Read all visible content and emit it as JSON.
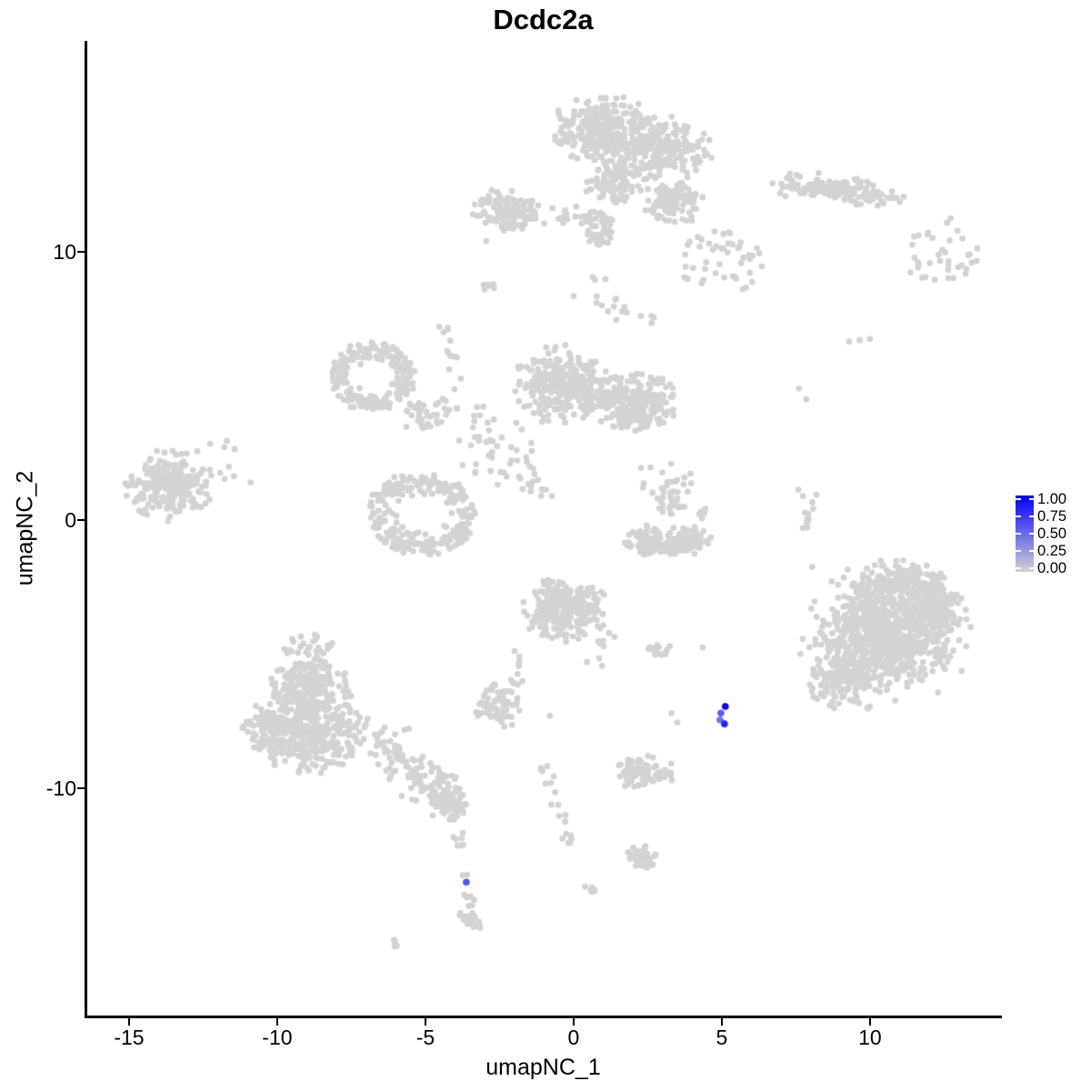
{
  "title": "Dcdc2a",
  "axes": {
    "x": {
      "title": "umapNC_1",
      "tick_labels": [
        "-15",
        "-10",
        "-5",
        "0",
        "5",
        "10"
      ],
      "tick_values": [
        -15,
        -10,
        -5,
        0,
        5,
        10
      ]
    },
    "y": {
      "title": "umapNC_2",
      "tick_labels": [
        "10",
        "0",
        "-10"
      ],
      "tick_values": [
        10,
        0,
        -10
      ]
    }
  },
  "legend": {
    "labels": [
      "1.00",
      "0.75",
      "0.50",
      "0.25",
      "0.00"
    ],
    "values": [
      1.0,
      0.75,
      0.5,
      0.25,
      0.0
    ],
    "low_color": "#d3d3d3",
    "high_color": "#0000ff"
  },
  "chart_data": {
    "type": "scatter",
    "title": "Dcdc2a",
    "xlabel": "umapNC_1",
    "ylabel": "umapNC_2",
    "xlim": [
      -16.44,
      14.39
    ],
    "ylim": [
      -18.51,
      17.86
    ],
    "grid": false,
    "legend_position": "right",
    "point_color_low": "#d3d3d3",
    "point_color_high": "#0000ff",
    "point_radius": 3.4,
    "highlight_radius": 3.8,
    "clusters": [
      {
        "t": "blob",
        "x": 1.0,
        "y": 14.55,
        "rx": 1.9,
        "ry": 1.3,
        "n": 280
      },
      {
        "t": "blob",
        "x": 3.0,
        "y": 13.8,
        "rx": 1.7,
        "ry": 1.3,
        "n": 220
      },
      {
        "t": "blob",
        "x": 1.4,
        "y": 12.6,
        "rx": 1.1,
        "ry": 0.9,
        "n": 100
      },
      {
        "t": "blob",
        "x": 3.4,
        "y": 11.9,
        "rx": 1.1,
        "ry": 0.9,
        "n": 110
      },
      {
        "t": "blob",
        "x": 0.8,
        "y": 10.9,
        "rx": 0.6,
        "ry": 0.85,
        "n": 55
      },
      {
        "t": "blob",
        "x": 8.8,
        "y": 12.3,
        "rx": 2.5,
        "ry": 0.6,
        "n": 140,
        "a": -8
      },
      {
        "t": "sparse",
        "x": 12.4,
        "y": 10.0,
        "rx": 1.3,
        "ry": 1.3,
        "n": 38
      },
      {
        "t": "sparse",
        "x": 4.9,
        "y": 9.6,
        "rx": 1.6,
        "ry": 1.2,
        "n": 48
      },
      {
        "t": "blob",
        "x": -2.25,
        "y": 11.55,
        "rx": 1.15,
        "ry": 0.85,
        "n": 130
      },
      {
        "t": "band",
        "x": -1.1,
        "y": 11.35,
        "x2": 0.3,
        "y2": 11.15,
        "w": 0.22,
        "n": 14
      },
      {
        "t": "blob",
        "x": -2.85,
        "y": 8.7,
        "rx": 0.42,
        "ry": 0.2,
        "n": 8,
        "a": 40
      },
      {
        "t": "band",
        "x": -4.5,
        "y": 7.6,
        "x2": -3.8,
        "y2": 4.9,
        "w": 0.18,
        "n": 14
      },
      {
        "t": "ring",
        "x": -6.8,
        "y": 5.35,
        "rx": 1.4,
        "ry": 1.25,
        "n": 205,
        "h": 0.45
      },
      {
        "t": "band",
        "x": -5.6,
        "y": 4.25,
        "x2": -4.6,
        "y2": 3.5,
        "w": 0.3,
        "n": 24
      },
      {
        "t": "sparse",
        "x": -4.3,
        "y": 4.0,
        "rx": 1.3,
        "ry": 0.55,
        "n": 18
      },
      {
        "t": "blob",
        "x": -0.55,
        "y": 5.05,
        "rx": 1.6,
        "ry": 1.5,
        "n": 260
      },
      {
        "t": "blob",
        "x": 2.1,
        "y": 4.35,
        "rx": 1.5,
        "ry": 1.15,
        "n": 230
      },
      {
        "t": "blob",
        "x": 0.8,
        "y": 4.7,
        "rx": 0.9,
        "ry": 0.9,
        "n": 60
      },
      {
        "t": "sparse",
        "x": -2.7,
        "y": 2.8,
        "rx": 1.4,
        "ry": 1.5,
        "n": 38
      },
      {
        "t": "band",
        "x": -2.2,
        "y": 2.9,
        "x2": -1.0,
        "y2": 0.7,
        "w": 0.25,
        "n": 18
      },
      {
        "t": "blob",
        "x": 3.3,
        "y": 0.8,
        "rx": 0.5,
        "ry": 0.8,
        "n": 35
      },
      {
        "t": "sparse",
        "x": 3.0,
        "y": 1.3,
        "rx": 1.1,
        "ry": 1.0,
        "n": 15
      },
      {
        "t": "blob",
        "x": 2.45,
        "y": -0.7,
        "rx": 0.8,
        "ry": 0.55,
        "n": 60
      },
      {
        "t": "blob",
        "x": 3.9,
        "y": -0.65,
        "rx": 0.8,
        "ry": 0.55,
        "n": 60
      },
      {
        "t": "blob",
        "x": 3.15,
        "y": -1.0,
        "rx": 1.3,
        "ry": 0.4,
        "n": 70
      },
      {
        "t": "blob",
        "x": 4.45,
        "y": 0.2,
        "rx": 0.28,
        "ry": 0.3,
        "n": 10
      },
      {
        "t": "band",
        "x": 7.9,
        "y": 1.2,
        "x2": 8.0,
        "y2": -0.6,
        "w": 0.15,
        "n": 13
      },
      {
        "t": "blob",
        "x": -13.7,
        "y": 1.3,
        "rx": 1.5,
        "ry": 1.35,
        "n": 230
      },
      {
        "t": "sparse",
        "x": -12.1,
        "y": 1.9,
        "rx": 1.0,
        "ry": 1.2,
        "n": 12
      },
      {
        "t": "ring",
        "x": -5.1,
        "y": 0.2,
        "rx": 1.8,
        "ry": 1.5,
        "n": 255,
        "h": 0.4
      },
      {
        "t": "blob",
        "x": -8.9,
        "y": -6.3,
        "rx": 1.5,
        "ry": 1.15,
        "n": 190
      },
      {
        "t": "blob",
        "x": -8.8,
        "y": -8.0,
        "rx": 2.15,
        "ry": 1.45,
        "n": 330
      },
      {
        "t": "blob",
        "x": -10.3,
        "y": -7.8,
        "rx": 0.95,
        "ry": 1.1,
        "n": 80
      },
      {
        "t": "sparse",
        "x": -8.9,
        "y": -4.95,
        "rx": 0.9,
        "ry": 0.75,
        "n": 42
      },
      {
        "t": "band",
        "x": -6.8,
        "y": -8.3,
        "x2": -3.95,
        "y2": -10.45,
        "w": 0.38,
        "n": 130
      },
      {
        "t": "blob",
        "x": -4.15,
        "y": -10.6,
        "rx": 0.6,
        "ry": 0.65,
        "n": 55
      },
      {
        "t": "band",
        "x": -4.05,
        "y": -11.3,
        "x2": -3.6,
        "y2": -13.3,
        "w": 0.12,
        "n": 9
      },
      {
        "t": "band",
        "x": -3.55,
        "y": -13.9,
        "x2": -3.35,
        "y2": -14.45,
        "w": 0.1,
        "n": 6
      },
      {
        "t": "blob",
        "x": -3.5,
        "y": -14.9,
        "rx": 0.5,
        "ry": 0.28,
        "n": 24,
        "a": -30
      },
      {
        "t": "blob",
        "x": -5.95,
        "y": -15.8,
        "rx": 0.3,
        "ry": 0.15,
        "n": 6,
        "a": -35
      },
      {
        "t": "blob",
        "x": 0.55,
        "y": -13.8,
        "rx": 0.25,
        "ry": 0.16,
        "n": 6,
        "a": -20
      },
      {
        "t": "blob",
        "x": -0.35,
        "y": -3.35,
        "rx": 1.55,
        "ry": 1.25,
        "n": 260
      },
      {
        "t": "band",
        "x": -1.75,
        "y": -4.7,
        "x2": -1.95,
        "y2": -6.2,
        "w": 0.15,
        "n": 11
      },
      {
        "t": "sparse",
        "x": 0.9,
        "y": -4.7,
        "rx": 0.7,
        "ry": 0.9,
        "n": 10
      },
      {
        "t": "blob",
        "x": 2.85,
        "y": -4.85,
        "rx": 0.6,
        "ry": 0.22,
        "n": 16
      },
      {
        "t": "blob",
        "x": -2.55,
        "y": -6.9,
        "rx": 0.9,
        "ry": 0.9,
        "n": 70
      },
      {
        "t": "blob",
        "x": 2.4,
        "y": -9.45,
        "rx": 1.05,
        "ry": 0.7,
        "n": 85
      },
      {
        "t": "band",
        "x": -0.95,
        "y": -9.1,
        "x2": -0.5,
        "y2": -10.7,
        "w": 0.12,
        "n": 10
      },
      {
        "t": "band",
        "x": -0.45,
        "y": -11.0,
        "x2": -0.2,
        "y2": -12.2,
        "w": 0.12,
        "n": 9
      },
      {
        "t": "blob",
        "x": 2.3,
        "y": -12.55,
        "rx": 0.6,
        "ry": 0.5,
        "n": 40
      },
      {
        "t": "blob",
        "x": 10.6,
        "y": -4.3,
        "rx": 2.35,
        "ry": 2.2,
        "n": 700
      },
      {
        "t": "blob",
        "x": 9.0,
        "y": -5.9,
        "rx": 1.15,
        "ry": 1.25,
        "n": 150
      },
      {
        "t": "blob",
        "x": 12.3,
        "y": -3.3,
        "rx": 1.0,
        "ry": 1.2,
        "n": 120
      },
      {
        "t": "blob",
        "x": 11.0,
        "y": -2.3,
        "rx": 1.6,
        "ry": 0.85,
        "n": 130
      },
      {
        "t": "sparse",
        "x": 10.5,
        "y": -4.3,
        "rx": 2.95,
        "ry": 2.8,
        "n": 105
      },
      {
        "t": "band",
        "x": 0.8,
        "y": 9.4,
        "x2": 1.3,
        "y2": 7.2,
        "w": 0.2,
        "n": 10
      },
      {
        "t": "sparse",
        "x": 2.0,
        "y": 7.5,
        "rx": 0.8,
        "ry": 0.9,
        "n": 8
      }
    ],
    "extra_points": [
      [
        9.3,
        6.65
      ],
      [
        9.65,
        6.7
      ],
      [
        10.0,
        6.75
      ],
      [
        7.6,
        4.9
      ],
      [
        7.85,
        4.5
      ],
      [
        8.05,
        -1.75
      ],
      [
        4.35,
        -4.75
      ],
      [
        -0.8,
        -7.3
      ],
      [
        3.3,
        -7.2
      ],
      [
        3.5,
        -7.55
      ],
      [
        -11.7,
        2.95
      ],
      [
        -10.9,
        1.4
      ],
      [
        -3.4,
        11.4
      ],
      [
        -3.15,
        11.35
      ],
      [
        -2.95,
        10.4
      ],
      [
        0.0,
        8.35
      ],
      [
        -6.05,
        1.6
      ]
    ],
    "expressing_cells": [
      {
        "x": 5.12,
        "y": -6.95,
        "v": 1.0
      },
      {
        "x": 4.97,
        "y": -7.2,
        "v": 0.55
      },
      {
        "x": 4.94,
        "y": -7.45,
        "v": 0.45
      },
      {
        "x": 5.09,
        "y": -7.6,
        "v": 0.85
      },
      {
        "x": -3.62,
        "y": -13.5,
        "v": 0.6
      }
    ]
  }
}
